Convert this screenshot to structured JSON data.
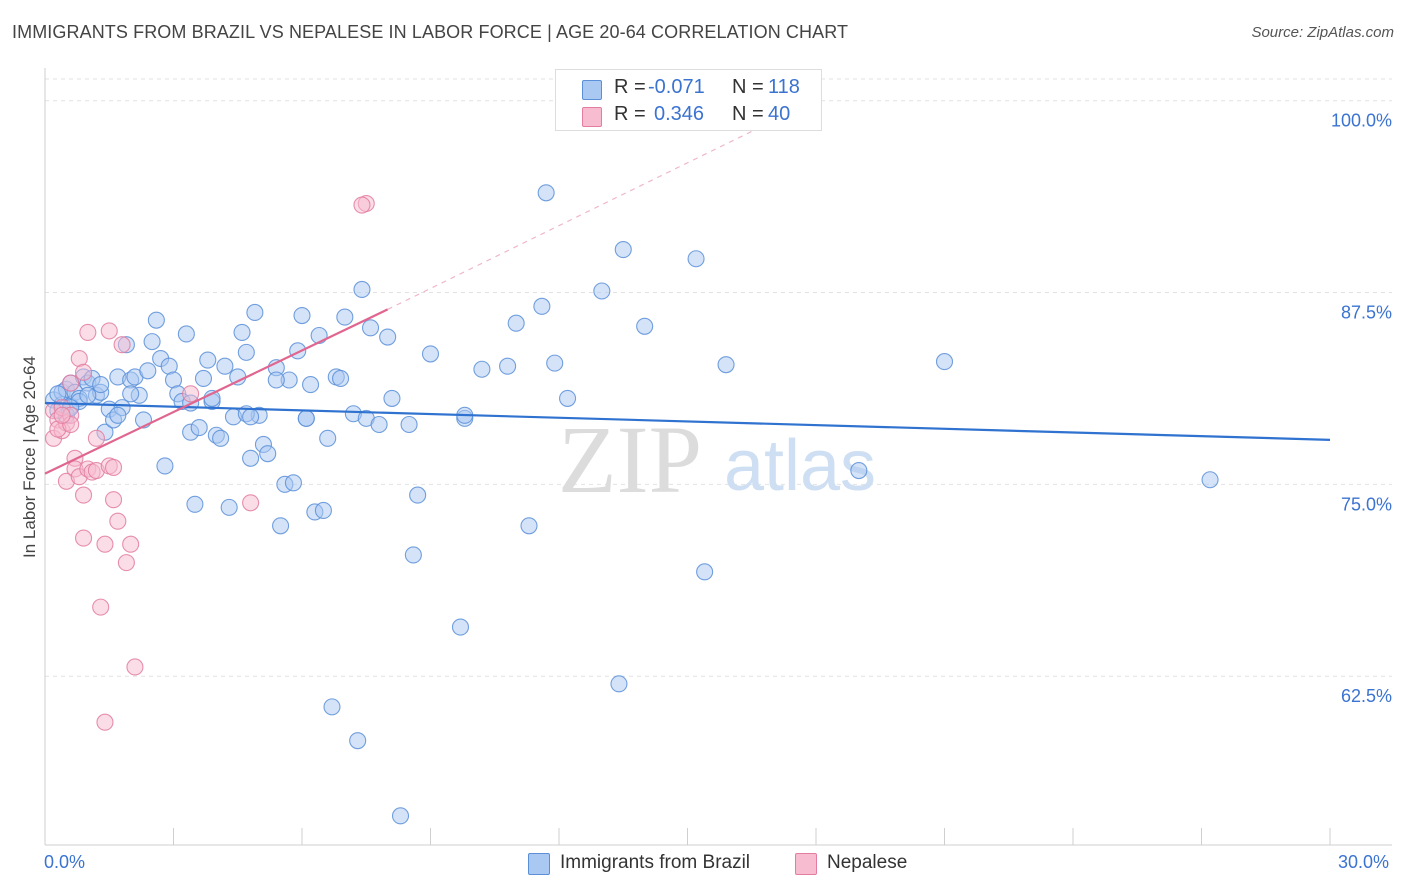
{
  "header": {
    "title": "IMMIGRANTS FROM BRAZIL VS NEPALESE IN LABOR FORCE | AGE 20-64 CORRELATION CHART",
    "source": "Source: ZipAtlas.com"
  },
  "watermark": {
    "zip": "ZIP",
    "atlas": "atlas"
  },
  "legend_top": {
    "rows": [
      {
        "r_label": "R =",
        "r_value": "-0.071",
        "n_label": "N =",
        "n_value": "118",
        "color": "#a9c8f2",
        "border": "#5b8fd8"
      },
      {
        "r_label": "R =",
        "r_value": "0.346",
        "n_label": "N =",
        "n_value": "40",
        "color": "#f7bcd0",
        "border": "#e27da0"
      }
    ]
  },
  "legend_bottom": [
    {
      "label": "Immigrants from Brazil",
      "color": "#a9c8f2",
      "border": "#5b8fd8"
    },
    {
      "label": "Nepalese",
      "color": "#f7bcd0",
      "border": "#e27da0"
    }
  ],
  "chart_data": {
    "type": "scatter",
    "title": "IMMIGRANTS FROM BRAZIL VS NEPALESE IN LABOR FORCE | AGE 20-64 CORRELATION CHART",
    "xlabel": "",
    "ylabel": "In Labor Force | Age 20-64",
    "xlim": [
      0,
      30
    ],
    "ylim": [
      51.5,
      102
    ],
    "x_tick_labels": [
      "0.0%",
      "30.0%"
    ],
    "y_ticks": [
      62.5,
      75.0,
      87.5,
      100.0
    ],
    "y_tick_labels": [
      "62.5%",
      "75.0%",
      "87.5%",
      "100.0%"
    ],
    "grid": true,
    "series": [
      {
        "name": "Immigrants from Brazil",
        "color": "#5b8fd8",
        "fill": "#a9c8f2",
        "R": -0.071,
        "N": 118,
        "trend": {
          "x": [
            0,
            30
          ],
          "y": [
            80.3,
            77.9
          ]
        },
        "points": [
          [
            0.2,
            80.5
          ],
          [
            0.3,
            79.8
          ],
          [
            0.4,
            80.2
          ],
          [
            0.4,
            81.0
          ],
          [
            0.5,
            81.2
          ],
          [
            0.6,
            80.1
          ],
          [
            0.6,
            81.6
          ],
          [
            0.7,
            81.0
          ],
          [
            0.8,
            80.6
          ],
          [
            0.9,
            82.0
          ],
          [
            1.0,
            81.6
          ],
          [
            1.1,
            81.9
          ],
          [
            1.2,
            80.8
          ],
          [
            1.3,
            81.0
          ],
          [
            1.4,
            78.4
          ],
          [
            1.5,
            79.9
          ],
          [
            1.6,
            79.2
          ],
          [
            1.7,
            82.0
          ],
          [
            1.8,
            80.0
          ],
          [
            1.9,
            84.1
          ],
          [
            2.0,
            81.8
          ],
          [
            2.1,
            82.0
          ],
          [
            2.2,
            80.8
          ],
          [
            2.4,
            82.4
          ],
          [
            2.5,
            84.3
          ],
          [
            2.6,
            85.7
          ],
          [
            2.7,
            83.2
          ],
          [
            2.8,
            76.2
          ],
          [
            2.9,
            82.7
          ],
          [
            3.0,
            81.8
          ],
          [
            3.1,
            80.9
          ],
          [
            3.2,
            80.4
          ],
          [
            3.3,
            84.8
          ],
          [
            3.4,
            78.4
          ],
          [
            3.5,
            73.7
          ],
          [
            3.6,
            78.7
          ],
          [
            3.7,
            81.9
          ],
          [
            3.8,
            83.1
          ],
          [
            3.9,
            80.4
          ],
          [
            4.0,
            78.2
          ],
          [
            4.1,
            78.0
          ],
          [
            4.2,
            82.7
          ],
          [
            4.3,
            73.5
          ],
          [
            4.4,
            79.4
          ],
          [
            4.5,
            82.0
          ],
          [
            4.6,
            84.9
          ],
          [
            4.7,
            83.6
          ],
          [
            4.8,
            76.7
          ],
          [
            4.9,
            86.2
          ],
          [
            5.0,
            79.5
          ],
          [
            5.1,
            77.6
          ],
          [
            5.2,
            77.0
          ],
          [
            5.4,
            82.6
          ],
          [
            5.5,
            72.3
          ],
          [
            5.6,
            75.0
          ],
          [
            5.7,
            81.8
          ],
          [
            5.8,
            75.1
          ],
          [
            5.9,
            83.7
          ],
          [
            6.0,
            86.0
          ],
          [
            6.1,
            79.3
          ],
          [
            6.2,
            81.5
          ],
          [
            6.3,
            73.2
          ],
          [
            6.4,
            84.7
          ],
          [
            6.5,
            73.3
          ],
          [
            6.6,
            78.0
          ],
          [
            6.7,
            60.5
          ],
          [
            6.8,
            82.0
          ],
          [
            6.9,
            81.9
          ],
          [
            7.0,
            85.9
          ],
          [
            7.2,
            79.6
          ],
          [
            7.3,
            58.3
          ],
          [
            7.4,
            87.7
          ],
          [
            7.5,
            79.3
          ],
          [
            7.6,
            85.2
          ],
          [
            7.8,
            78.9
          ],
          [
            8.0,
            84.6
          ],
          [
            8.1,
            80.6
          ],
          [
            8.3,
            53.4
          ],
          [
            8.5,
            78.9
          ],
          [
            8.6,
            70.4
          ],
          [
            8.7,
            74.3
          ],
          [
            9.0,
            83.5
          ],
          [
            9.7,
            65.7
          ],
          [
            9.8,
            79.3
          ],
          [
            9.8,
            79.5
          ],
          [
            10.2,
            82.5
          ],
          [
            10.8,
            82.7
          ],
          [
            11.0,
            85.5
          ],
          [
            11.3,
            72.3
          ],
          [
            11.6,
            86.6
          ],
          [
            11.7,
            94.0
          ],
          [
            11.9,
            82.9
          ],
          [
            12.2,
            80.6
          ],
          [
            13.0,
            87.6
          ],
          [
            13.4,
            62.0
          ],
          [
            13.5,
            90.3
          ],
          [
            14.0,
            85.3
          ],
          [
            15.2,
            89.7
          ],
          [
            15.4,
            69.3
          ],
          [
            15.9,
            82.8
          ],
          [
            19.0,
            75.9
          ],
          [
            21.0,
            83.0
          ],
          [
            27.2,
            75.3
          ],
          [
            0.3,
            80.9
          ],
          [
            0.5,
            79.5
          ],
          [
            0.8,
            80.4
          ],
          [
            1.3,
            81.5
          ],
          [
            1.7,
            79.5
          ],
          [
            2.3,
            79.2
          ],
          [
            3.4,
            80.3
          ],
          [
            4.7,
            79.6
          ],
          [
            5.4,
            81.8
          ],
          [
            2.0,
            80.9
          ],
          [
            1.0,
            80.8
          ],
          [
            0.6,
            80.0
          ],
          [
            3.9,
            80.6
          ],
          [
            4.8,
            79.4
          ],
          [
            6.1,
            79.3
          ]
        ]
      },
      {
        "name": "Nepalese",
        "color": "#e27da0",
        "fill": "#f7bcd0",
        "R": 0.346,
        "N": 40,
        "trend": {
          "x": [
            0,
            8.0
          ],
          "y": [
            75.7,
            86.4
          ]
        },
        "trend_dashed": {
          "x": [
            8.0,
            16.5
          ],
          "y": [
            86.4,
            98.0
          ]
        },
        "points": [
          [
            0.2,
            79.8
          ],
          [
            0.2,
            78.0
          ],
          [
            0.3,
            79.2
          ],
          [
            0.4,
            78.5
          ],
          [
            0.4,
            80.0
          ],
          [
            0.5,
            79.0
          ],
          [
            0.5,
            75.2
          ],
          [
            0.6,
            81.6
          ],
          [
            0.6,
            79.5
          ],
          [
            0.7,
            76.7
          ],
          [
            0.7,
            76.0
          ],
          [
            0.8,
            83.2
          ],
          [
            0.8,
            75.5
          ],
          [
            0.9,
            74.3
          ],
          [
            0.9,
            71.5
          ],
          [
            0.9,
            82.3
          ],
          [
            1.0,
            76.0
          ],
          [
            1.0,
            84.9
          ],
          [
            1.1,
            75.8
          ],
          [
            1.2,
            78.0
          ],
          [
            1.2,
            75.9
          ],
          [
            1.3,
            67.0
          ],
          [
            1.4,
            71.1
          ],
          [
            1.5,
            85.0
          ],
          [
            1.5,
            76.2
          ],
          [
            1.6,
            74.0
          ],
          [
            1.6,
            76.1
          ],
          [
            1.7,
            72.6
          ],
          [
            1.8,
            84.1
          ],
          [
            1.9,
            69.9
          ],
          [
            2.0,
            71.1
          ],
          [
            2.1,
            63.1
          ],
          [
            1.4,
            59.5
          ],
          [
            4.8,
            73.8
          ],
          [
            7.5,
            93.3
          ],
          [
            7.4,
            93.2
          ],
          [
            0.3,
            78.6
          ],
          [
            0.6,
            78.9
          ],
          [
            0.4,
            79.5
          ],
          [
            3.4,
            80.9
          ]
        ]
      }
    ]
  }
}
